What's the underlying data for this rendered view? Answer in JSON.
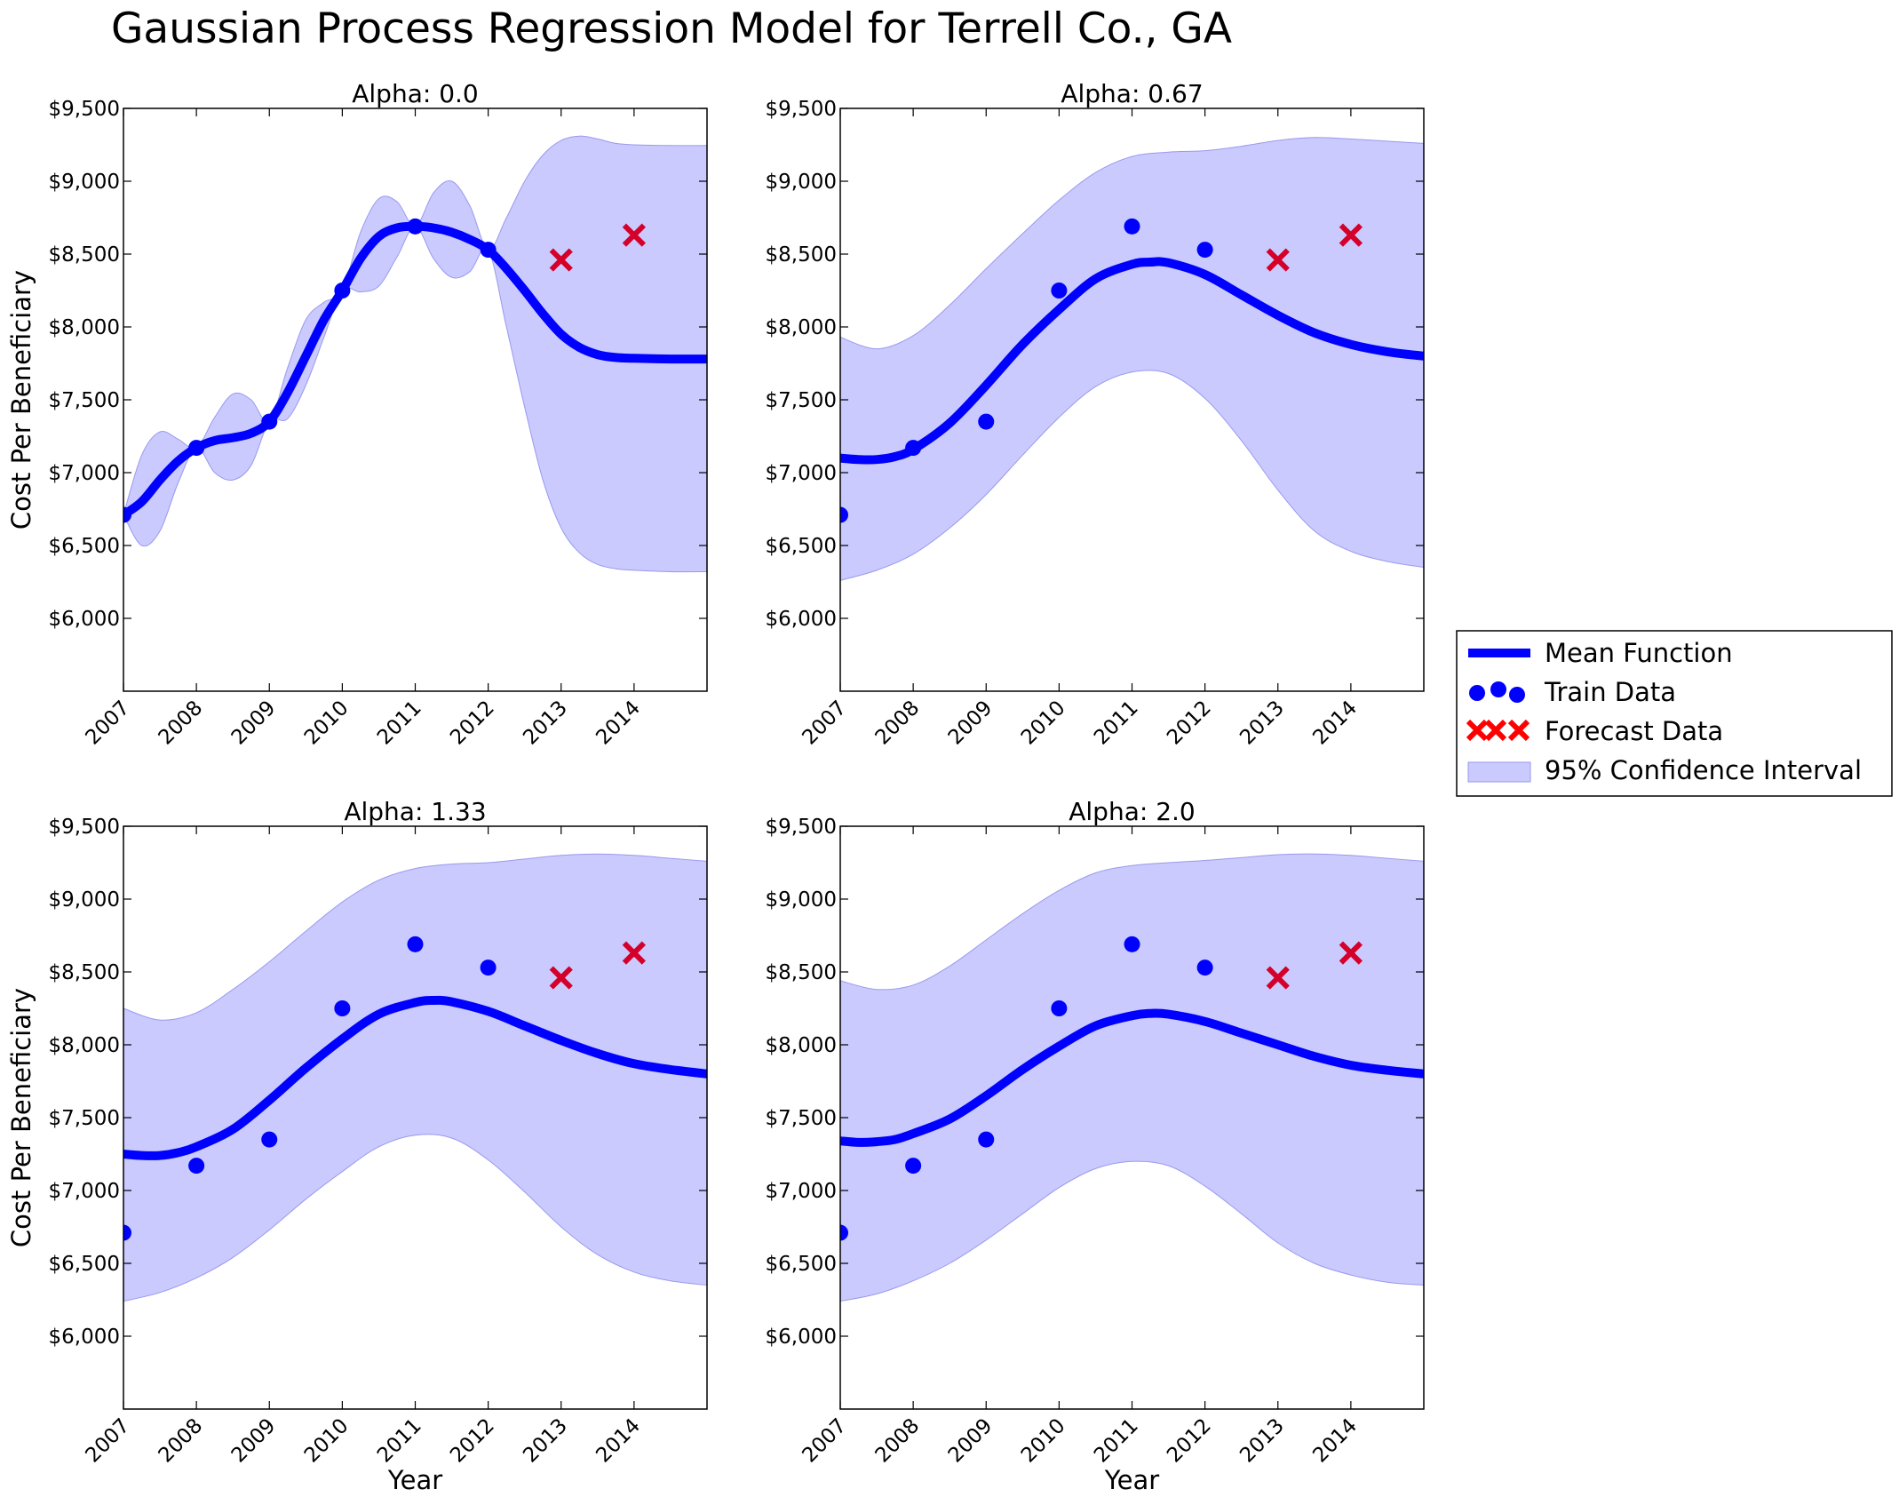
{
  "figure": {
    "title": "Gaussian Process Regression Model for Terrell Co., GA"
  },
  "legend": {
    "placement": "right",
    "items": [
      "Mean Function",
      "Train Data",
      "Forecast Data",
      "95% Confidence Interval"
    ]
  },
  "colors": {
    "mean": "#0000ff",
    "train": "#0000ff",
    "forecast": "#d4002a",
    "forecast_legend": "#ff0000",
    "band": "#b3b3ff",
    "band_edge": "#9999ee"
  },
  "chart_data": [
    {
      "type": "line",
      "title": "Alpha: 0.0",
      "xlabel": "",
      "ylabel": "Cost Per Beneficiary",
      "xlim": [
        2007,
        2015
      ],
      "ylim": [
        5500,
        9500
      ],
      "xticks": [
        "2007",
        "2008",
        "2009",
        "2010",
        "2011",
        "2012",
        "2013",
        "2014"
      ],
      "yticks": [
        "$6,000",
        "$6,500",
        "$7,000",
        "$7,500",
        "$8,000",
        "$8,500",
        "$9,000",
        "$9,500"
      ],
      "grid": false,
      "train": {
        "x": [
          2007,
          2008,
          2009,
          2010,
          2011,
          2012
        ],
        "y": [
          6710,
          7170,
          7350,
          8250,
          8690,
          8530
        ]
      },
      "forecast": {
        "x": [
          2013,
          2014
        ],
        "y": [
          8460,
          8630
        ]
      },
      "mean": {
        "x": [
          2007,
          2007.25,
          2007.5,
          2007.75,
          2008,
          2008.25,
          2008.5,
          2008.75,
          2009,
          2009.25,
          2009.5,
          2009.75,
          2010,
          2010.25,
          2010.5,
          2010.75,
          2011,
          2011.25,
          2011.5,
          2011.75,
          2012,
          2012.25,
          2012.5,
          2012.75,
          2013,
          2013.25,
          2013.5,
          2013.75,
          2014,
          2014.5,
          2015
        ],
        "y": [
          6710,
          6800,
          6950,
          7080,
          7170,
          7220,
          7240,
          7270,
          7350,
          7550,
          7800,
          8050,
          8250,
          8470,
          8620,
          8680,
          8690,
          8680,
          8650,
          8600,
          8530,
          8400,
          8250,
          8090,
          7950,
          7860,
          7810,
          7790,
          7785,
          7780,
          7780
        ]
      },
      "band_upper": {
        "x": [
          2007,
          2007.25,
          2007.5,
          2007.75,
          2008,
          2008.25,
          2008.5,
          2008.75,
          2009,
          2009.25,
          2009.5,
          2009.75,
          2010,
          2010.25,
          2010.5,
          2010.75,
          2011,
          2011.25,
          2011.5,
          2011.75,
          2012,
          2012.25,
          2012.5,
          2012.75,
          2013,
          2013.25,
          2013.5,
          2013.75,
          2014,
          2014.5,
          2015
        ],
        "y": [
          6710,
          7120,
          7280,
          7230,
          7170,
          7380,
          7540,
          7500,
          7350,
          7720,
          8050,
          8170,
          8250,
          8650,
          8880,
          8860,
          8690,
          8920,
          9000,
          8830,
          8530,
          8750,
          9000,
          9180,
          9280,
          9310,
          9290,
          9260,
          9250,
          9245,
          9245
        ]
      },
      "band_lower": {
        "x": [
          2007,
          2007.25,
          2007.5,
          2007.75,
          2008,
          2008.25,
          2008.5,
          2008.75,
          2009,
          2009.25,
          2009.5,
          2009.75,
          2010,
          2010.25,
          2010.5,
          2010.75,
          2011,
          2011.25,
          2011.5,
          2011.75,
          2012,
          2012.25,
          2012.5,
          2012.75,
          2013,
          2013.25,
          2013.5,
          2013.75,
          2014,
          2014.5,
          2015
        ],
        "y": [
          6710,
          6500,
          6600,
          6930,
          7170,
          7000,
          6950,
          7050,
          7350,
          7370,
          7600,
          7930,
          8250,
          8240,
          8280,
          8480,
          8690,
          8470,
          8340,
          8380,
          8530,
          8000,
          7450,
          6950,
          6620,
          6450,
          6370,
          6340,
          6330,
          6320,
          6320
        ]
      }
    },
    {
      "type": "line",
      "title": "Alpha: 0.67",
      "xlabel": "",
      "ylabel": "",
      "xlim": [
        2007,
        2015
      ],
      "ylim": [
        5500,
        9500
      ],
      "xticks": [
        "2007",
        "2008",
        "2009",
        "2010",
        "2011",
        "2012",
        "2013",
        "2014"
      ],
      "yticks": [
        "$6,000",
        "$6,500",
        "$7,000",
        "$7,500",
        "$8,000",
        "$8,500",
        "$9,000",
        "$9,500"
      ],
      "grid": false,
      "train": {
        "x": [
          2007,
          2008,
          2009,
          2010,
          2011,
          2012
        ],
        "y": [
          6710,
          7170,
          7350,
          8250,
          8690,
          8530
        ]
      },
      "forecast": {
        "x": [
          2013,
          2014
        ],
        "y": [
          8460,
          8630
        ]
      },
      "mean": {
        "x": [
          2007,
          2007.25,
          2007.5,
          2007.75,
          2008,
          2008.5,
          2009,
          2009.5,
          2010,
          2010.5,
          2011,
          2011.25,
          2011.5,
          2012,
          2012.5,
          2013,
          2013.5,
          2014,
          2014.5,
          2015
        ],
        "y": [
          7100,
          7090,
          7090,
          7110,
          7160,
          7340,
          7600,
          7880,
          8120,
          8330,
          8430,
          8445,
          8440,
          8360,
          8220,
          8080,
          7960,
          7880,
          7830,
          7800
        ]
      },
      "band_upper": {
        "x": [
          2007,
          2007.5,
          2008,
          2008.5,
          2009,
          2009.5,
          2010,
          2010.5,
          2011,
          2011.5,
          2012,
          2012.5,
          2013,
          2013.5,
          2014,
          2014.5,
          2015
        ],
        "y": [
          7930,
          7850,
          7940,
          8150,
          8400,
          8640,
          8870,
          9060,
          9170,
          9200,
          9210,
          9240,
          9280,
          9300,
          9290,
          9275,
          9260
        ]
      },
      "band_lower": {
        "x": [
          2007,
          2007.5,
          2008,
          2008.5,
          2009,
          2009.5,
          2010,
          2010.5,
          2011,
          2011.5,
          2012,
          2012.5,
          2013,
          2013.5,
          2014,
          2014.5,
          2015
        ],
        "y": [
          6260,
          6330,
          6440,
          6620,
          6850,
          7120,
          7380,
          7590,
          7690,
          7680,
          7510,
          7220,
          6880,
          6600,
          6460,
          6390,
          6350
        ]
      }
    },
    {
      "type": "line",
      "title": "Alpha: 1.33",
      "xlabel": "Year",
      "ylabel": "Cost Per Beneficiary",
      "xlim": [
        2007,
        2015
      ],
      "ylim": [
        5500,
        9500
      ],
      "xticks": [
        "2007",
        "2008",
        "2009",
        "2010",
        "2011",
        "2012",
        "2013",
        "2014"
      ],
      "yticks": [
        "$6,000",
        "$6,500",
        "$7,000",
        "$7,500",
        "$8,000",
        "$8,500",
        "$9,000",
        "$9,500"
      ],
      "grid": false,
      "train": {
        "x": [
          2007,
          2008,
          2009,
          2010,
          2011,
          2012
        ],
        "y": [
          6710,
          7170,
          7350,
          8250,
          8690,
          8530
        ]
      },
      "forecast": {
        "x": [
          2013,
          2014
        ],
        "y": [
          8460,
          8630
        ]
      },
      "mean": {
        "x": [
          2007,
          2007.25,
          2007.5,
          2007.75,
          2008,
          2008.5,
          2009,
          2009.5,
          2010,
          2010.5,
          2011,
          2011.25,
          2011.5,
          2012,
          2012.5,
          2013,
          2013.5,
          2014,
          2014.5,
          2015
        ],
        "y": [
          7250,
          7240,
          7240,
          7260,
          7300,
          7420,
          7620,
          7840,
          8040,
          8210,
          8290,
          8305,
          8295,
          8230,
          8130,
          8030,
          7940,
          7870,
          7830,
          7800
        ]
      },
      "band_upper": {
        "x": [
          2007,
          2007.5,
          2008,
          2008.5,
          2009,
          2009.5,
          2010,
          2010.5,
          2011,
          2011.5,
          2012,
          2012.5,
          2013,
          2013.5,
          2014,
          2014.5,
          2015
        ],
        "y": [
          8250,
          8170,
          8220,
          8380,
          8570,
          8780,
          8980,
          9130,
          9210,
          9240,
          9250,
          9275,
          9300,
          9310,
          9300,
          9280,
          9260
        ]
      },
      "band_lower": {
        "x": [
          2007,
          2007.5,
          2008,
          2008.5,
          2009,
          2009.5,
          2010,
          2010.5,
          2011,
          2011.5,
          2012,
          2012.5,
          2013,
          2013.5,
          2014,
          2014.5,
          2015
        ],
        "y": [
          6240,
          6300,
          6400,
          6540,
          6730,
          6940,
          7130,
          7300,
          7380,
          7360,
          7210,
          6990,
          6750,
          6560,
          6440,
          6380,
          6350
        ]
      }
    },
    {
      "type": "line",
      "title": "Alpha: 2.0",
      "xlabel": "Year",
      "ylabel": "",
      "xlim": [
        2007,
        2015
      ],
      "ylim": [
        5500,
        9500
      ],
      "xticks": [
        "2007",
        "2008",
        "2009",
        "2010",
        "2011",
        "2012",
        "2013",
        "2014"
      ],
      "yticks": [
        "$6,000",
        "$6,500",
        "$7,000",
        "$7,500",
        "$8,000",
        "$8,500",
        "$9,000",
        "$9,500"
      ],
      "grid": false,
      "train": {
        "x": [
          2007,
          2008,
          2009,
          2010,
          2011,
          2012
        ],
        "y": [
          6710,
          7170,
          7350,
          8250,
          8690,
          8530
        ]
      },
      "forecast": {
        "x": [
          2013,
          2014
        ],
        "y": [
          8460,
          8630
        ]
      },
      "mean": {
        "x": [
          2007,
          2007.25,
          2007.5,
          2007.75,
          2008,
          2008.5,
          2009,
          2009.5,
          2010,
          2010.5,
          2011,
          2011.25,
          2011.5,
          2012,
          2012.5,
          2013,
          2013.5,
          2014,
          2014.5,
          2015
        ],
        "y": [
          7340,
          7330,
          7335,
          7350,
          7390,
          7490,
          7650,
          7830,
          7990,
          8130,
          8200,
          8215,
          8210,
          8160,
          8080,
          8000,
          7920,
          7860,
          7825,
          7800
        ]
      },
      "band_upper": {
        "x": [
          2007,
          2007.5,
          2008,
          2008.5,
          2009,
          2009.5,
          2010,
          2010.5,
          2011,
          2011.5,
          2012,
          2012.5,
          2013,
          2013.5,
          2014,
          2014.5,
          2015
        ],
        "y": [
          8440,
          8380,
          8410,
          8540,
          8720,
          8900,
          9060,
          9180,
          9230,
          9250,
          9265,
          9285,
          9305,
          9310,
          9300,
          9280,
          9260
        ]
      },
      "band_lower": {
        "x": [
          2007,
          2007.5,
          2008,
          2008.5,
          2009,
          2009.5,
          2010,
          2010.5,
          2011,
          2011.5,
          2012,
          2012.5,
          2013,
          2013.5,
          2014,
          2014.5,
          2015
        ],
        "y": [
          6240,
          6290,
          6380,
          6500,
          6660,
          6840,
          7020,
          7150,
          7200,
          7170,
          7030,
          6840,
          6640,
          6500,
          6420,
          6370,
          6350
        ]
      }
    }
  ]
}
